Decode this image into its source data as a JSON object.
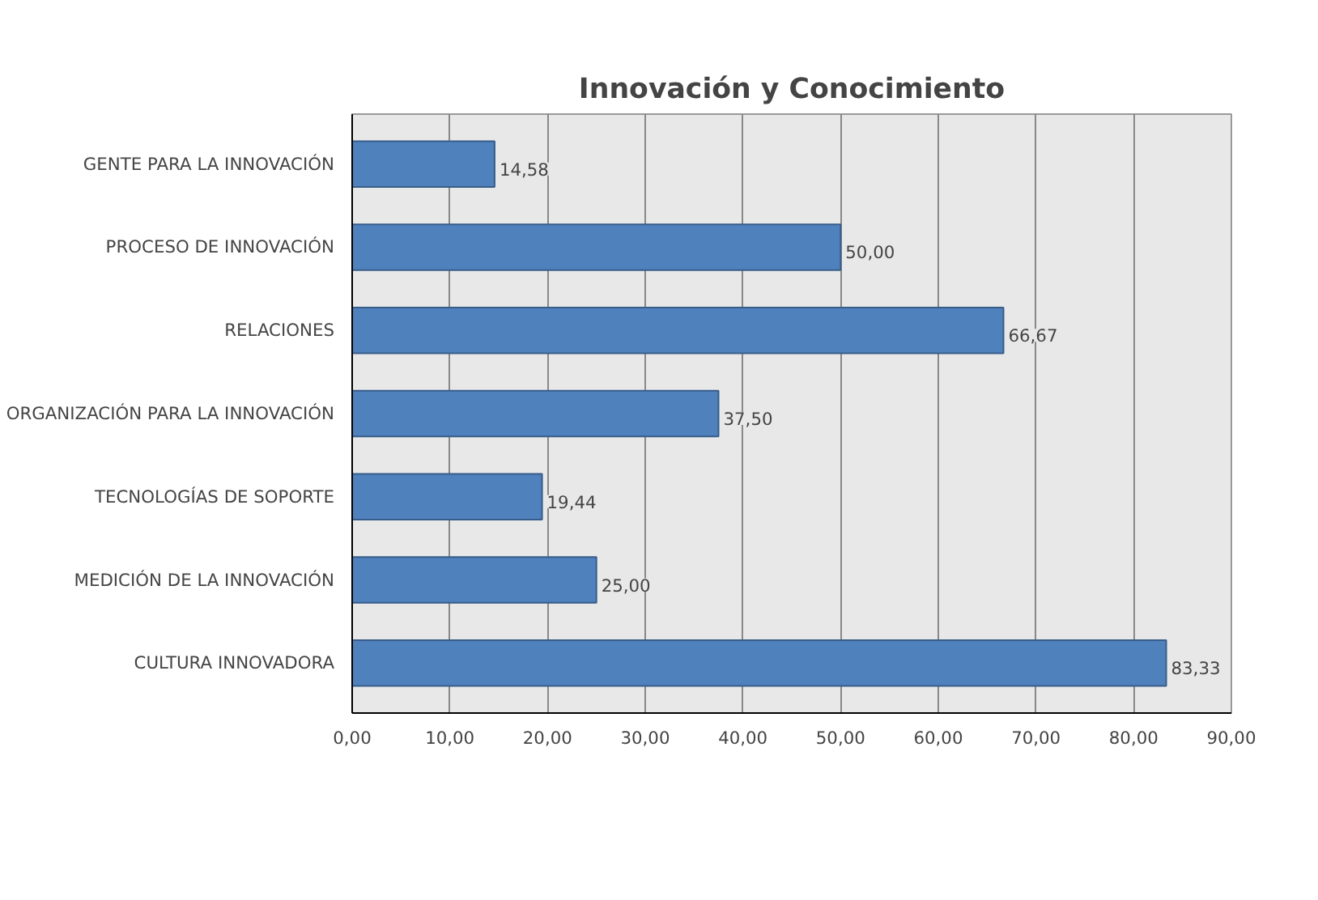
{
  "chart_data": {
    "type": "bar",
    "orientation": "horizontal",
    "title": "Innovación y Conocimiento",
    "categories": [
      "GENTE PARA LA INNOVACIÓN",
      "PROCESO DE INNOVACIÓN",
      "RELACIONES",
      "ORGANIZACIÓN PARA LA INNOVACIÓN",
      "TECNOLOGÍAS DE SOPORTE",
      "MEDICIÓN DE LA INNOVACIÓN",
      "CULTURA INNOVADORA"
    ],
    "values": [
      14.58,
      50.0,
      66.67,
      37.5,
      19.44,
      25.0,
      83.33
    ],
    "value_labels": [
      "14,58",
      "50,00",
      "66,67",
      "37,50",
      "19,44",
      "25,00",
      "83,33"
    ],
    "color": "#4f81bd",
    "xlim": [
      0,
      90
    ],
    "xticks": [
      {
        "value": 0,
        "label": "0,00"
      },
      {
        "value": 10,
        "label": "10,00"
      },
      {
        "value": 20,
        "label": "20,00"
      },
      {
        "value": 30,
        "label": "30,00"
      },
      {
        "value": 40,
        "label": "40,00"
      },
      {
        "value": 50,
        "label": "50,00"
      },
      {
        "value": 60,
        "label": "60,00"
      },
      {
        "value": 70,
        "label": "70,00"
      },
      {
        "value": 80,
        "label": "80,00"
      },
      {
        "value": 90,
        "label": "90,00"
      }
    ],
    "grid": "x"
  }
}
